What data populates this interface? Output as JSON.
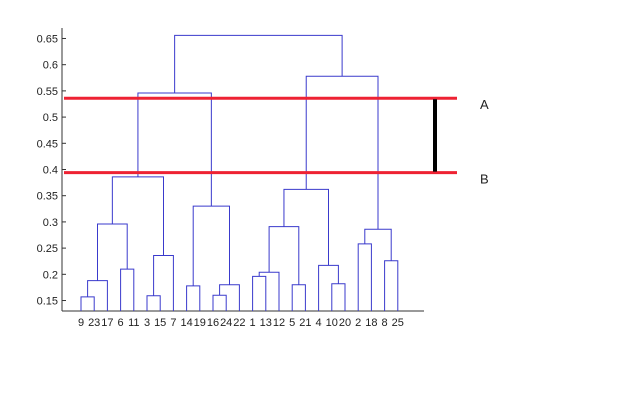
{
  "chart_data": {
    "type": "dendrogram",
    "title": "",
    "xlabel": "",
    "ylabel": "",
    "ylim": [
      0.13,
      0.67
    ],
    "y_ticks": [
      0.15,
      0.2,
      0.25,
      0.3,
      0.35,
      0.4,
      0.45,
      0.5,
      0.55,
      0.6,
      0.65
    ],
    "y_tick_labels": [
      "0.15",
      "0.2",
      "0.25",
      "0.3",
      "0.35",
      "0.4",
      "0.45",
      "0.5",
      "0.55",
      "0.6",
      "0.65"
    ],
    "leaf_order": [
      "9",
      "23",
      "17",
      "6",
      "11",
      "3",
      "15",
      "7",
      "14",
      "19",
      "16",
      "24",
      "22",
      "1",
      "13",
      "12",
      "5",
      "21",
      "4",
      "10",
      "20",
      "2",
      "18",
      "8",
      "25"
    ],
    "merges": [
      {
        "a": "L:9",
        "b": "L:23",
        "h": 0.157
      },
      {
        "a": "C:0",
        "b": "L:17",
        "h": 0.188
      },
      {
        "a": "L:6",
        "b": "L:11",
        "h": 0.21
      },
      {
        "a": "C:1",
        "b": "C:2",
        "h": 0.296
      },
      {
        "a": "L:3",
        "b": "L:15",
        "h": 0.159
      },
      {
        "a": "C:4",
        "b": "L:7",
        "h": 0.236
      },
      {
        "a": "C:3",
        "b": "C:5",
        "h": 0.386
      },
      {
        "a": "L:14",
        "b": "L:19",
        "h": 0.178
      },
      {
        "a": "L:16",
        "b": "L:24",
        "h": 0.16
      },
      {
        "a": "C:8",
        "b": "L:22",
        "h": 0.18
      },
      {
        "a": "C:7",
        "b": "C:9",
        "h": 0.33
      },
      {
        "a": "C:6",
        "b": "C:10",
        "h": 0.546
      },
      {
        "a": "L:1",
        "b": "L:13",
        "h": 0.196
      },
      {
        "a": "C:12",
        "b": "L:12",
        "h": 0.204
      },
      {
        "a": "L:5",
        "b": "L:21",
        "h": 0.18
      },
      {
        "a": "C:13",
        "b": "C:14",
        "h": 0.291
      },
      {
        "a": "L:10",
        "b": "L:20",
        "h": 0.182
      },
      {
        "a": "L:4",
        "b": "C:16",
        "h": 0.217
      },
      {
        "a": "C:15",
        "b": "C:17",
        "h": 0.362
      },
      {
        "a": "L:2",
        "b": "L:18",
        "h": 0.258
      },
      {
        "a": "L:8",
        "b": "L:25",
        "h": 0.226
      },
      {
        "a": "C:19",
        "b": "C:20",
        "h": 0.286
      },
      {
        "a": "C:18",
        "b": "C:21",
        "h": 0.578
      },
      {
        "a": "C:11",
        "b": "C:22",
        "h": 0.656
      }
    ],
    "cut_lines": [
      {
        "label": "A",
        "y": 0.536
      },
      {
        "label": "B",
        "y": 0.394
      }
    ],
    "colors": {
      "dendrogram": "#3a3acc",
      "cut_line": "#ee2233",
      "bracket": "#000000",
      "axis": "#333333"
    }
  }
}
